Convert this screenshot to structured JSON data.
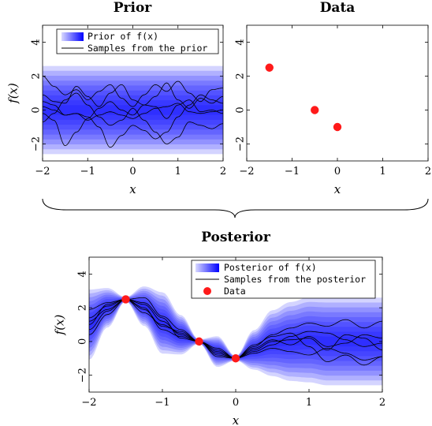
{
  "prior_title": "Prior",
  "data_title": "Data",
  "posterior_title": "Posterior",
  "prior_legend": {
    "band": "Prior of f(x)",
    "samples": "Samples from the prior"
  },
  "posterior_legend": {
    "band": "Posterior of f(x)",
    "samples": "Samples from the posterior",
    "data": "Data"
  },
  "colors": {
    "band": "#0000ff",
    "data_point": "#ff1a1a",
    "sample_line": "#000000"
  },
  "chart_data": [
    {
      "id": "prior",
      "type": "line",
      "title": "Prior",
      "xlabel": "x",
      "ylabel": "f(x)",
      "xlim": [
        -2,
        2
      ],
      "ylim": [
        -3,
        5
      ],
      "xticks": [
        -2,
        -1,
        0,
        1,
        2
      ],
      "yticks": [
        -2,
        0,
        2,
        4
      ],
      "band": {
        "mean": 0,
        "std": 1
      },
      "series": [
        {
          "x": [
            -2,
            -1.75,
            -1.5,
            -1.25,
            -1,
            -0.75,
            -0.5,
            -0.25,
            0,
            0.25,
            0.5,
            0.75,
            1,
            1.25,
            1.5,
            1.75,
            2
          ],
          "values": [
            2.0,
            1.4,
            0.9,
            1.2,
            0.6,
            1.1,
            1.5,
            0.7,
            0.2,
            0.9,
            1.5,
            1.1,
            1.7,
            1.0,
            0.5,
            1.2,
            1.3
          ]
        },
        {
          "x": [
            -2,
            -1.75,
            -1.5,
            -1.25,
            -1,
            -0.75,
            -0.5,
            -0.25,
            0,
            0.25,
            0.5,
            0.75,
            1,
            1.25,
            1.5,
            1.75,
            2
          ],
          "values": [
            0.9,
            0.5,
            0.4,
            1.4,
            0.8,
            0.2,
            1.0,
            1.5,
            0.6,
            0.3,
            0.8,
            1.6,
            0.6,
            0.1,
            0.7,
            0.4,
            0.8
          ]
        },
        {
          "x": [
            -2,
            -1.75,
            -1.5,
            -1.25,
            -1,
            -0.75,
            -0.5,
            -0.25,
            0,
            0.25,
            0.5,
            0.75,
            1,
            1.25,
            1.5,
            1.75,
            2
          ],
          "values": [
            -0.2,
            -0.6,
            -2.1,
            -1.3,
            -0.5,
            0.1,
            0.5,
            0.0,
            -0.3,
            0.3,
            0.2,
            -0.5,
            0.3,
            0.6,
            -0.1,
            0.0,
            -0.2
          ]
        },
        {
          "x": [
            -2,
            -1.75,
            -1.5,
            -1.25,
            -1,
            -0.75,
            -0.5,
            -0.25,
            0,
            0.25,
            0.5,
            0.75,
            1,
            1.25,
            1.5,
            1.75,
            2
          ],
          "values": [
            0.5,
            0.3,
            -0.3,
            -0.2,
            -0.4,
            -1.0,
            -2.2,
            -1.5,
            -0.9,
            -1.2,
            -1.7,
            -1.3,
            -0.4,
            0.3,
            0.9,
            0.6,
            0.4
          ]
        },
        {
          "x": [
            -2,
            -1.75,
            -1.5,
            -1.25,
            -1,
            -0.75,
            -0.5,
            -0.25,
            0,
            0.25,
            0.5,
            0.75,
            1,
            1.25,
            1.5,
            1.75,
            2
          ],
          "values": [
            -0.7,
            -0.2,
            0.6,
            1.0,
            0.3,
            -0.4,
            -0.9,
            -0.6,
            0.1,
            -0.6,
            -1.3,
            -2.0,
            -1.6,
            -0.7,
            -0.9,
            -1.1,
            -0.8
          ]
        },
        {
          "x": [
            -2,
            -1.75,
            -1.5,
            -1.25,
            -1,
            -0.75,
            -0.5,
            -0.25,
            0,
            0.25,
            0.5,
            0.75,
            1,
            1.25,
            1.5,
            1.75,
            2
          ],
          "values": [
            0.2,
            0.0,
            -0.3,
            -0.2,
            -0.6,
            -0.3,
            -0.1,
            -0.3,
            -0.5,
            -0.2,
            0.1,
            0.2,
            0.4,
            -0.1,
            -0.2,
            -0.1,
            0.0
          ]
        }
      ]
    },
    {
      "id": "data",
      "type": "scatter",
      "title": "Data",
      "xlabel": "x",
      "xlim": [
        -2,
        2
      ],
      "ylim": [
        -3,
        5
      ],
      "xticks": [
        -2,
        -1,
        0,
        1,
        2
      ],
      "yticks": [
        -2,
        0,
        2,
        4
      ],
      "points": [
        {
          "x": -1.5,
          "y": 2.5
        },
        {
          "x": -0.5,
          "y": 0
        },
        {
          "x": 0,
          "y": -1
        }
      ]
    },
    {
      "id": "posterior",
      "type": "line",
      "title": "Posterior",
      "xlabel": "x",
      "ylabel": "f(x)",
      "xlim": [
        -2,
        2
      ],
      "ylim": [
        -3,
        5
      ],
      "xticks": [
        -2,
        -1,
        0,
        1,
        2
      ],
      "yticks": [
        -2,
        0,
        2,
        4
      ],
      "band": {
        "x": [
          -2,
          -1.75,
          -1.5,
          -1.25,
          -1,
          -0.75,
          -0.5,
          -0.25,
          0,
          0.25,
          0.5,
          0.75,
          1,
          1.25,
          1.5,
          1.75,
          2
        ],
        "mean": [
          1.0,
          2.0,
          2.5,
          2.1,
          1.1,
          0.4,
          0.0,
          -0.6,
          -1.0,
          -0.5,
          -0.1,
          0.0,
          0.1,
          0.0,
          0.0,
          0.0,
          0.0
        ],
        "std": [
          0.8,
          0.45,
          0.05,
          0.45,
          0.7,
          0.45,
          0.05,
          0.35,
          0.05,
          0.45,
          0.75,
          0.9,
          0.97,
          1.0,
          1.0,
          1.0,
          1.0
        ]
      },
      "points": [
        {
          "x": -1.5,
          "y": 2.5
        },
        {
          "x": -0.5,
          "y": 0
        },
        {
          "x": 0,
          "y": -1
        }
      ],
      "series": [
        {
          "x": [
            -2,
            -1.75,
            -1.5,
            -1.25,
            -1,
            -0.75,
            -0.5,
            -0.25,
            0,
            0.25,
            0.5,
            0.75,
            1,
            1.25,
            1.5,
            1.75,
            2
          ],
          "values": [
            1.9,
            2.3,
            2.5,
            2.6,
            1.5,
            0.7,
            0.0,
            -0.4,
            -1.0,
            -0.3,
            0.4,
            0.8,
            1.1,
            0.9,
            1.3,
            0.8,
            1.2
          ]
        },
        {
          "x": [
            -2,
            -1.75,
            -1.5,
            -1.25,
            -1,
            -0.75,
            -0.5,
            -0.25,
            0,
            0.25,
            0.5,
            0.75,
            1,
            1.25,
            1.5,
            1.75,
            2
          ],
          "values": [
            1.2,
            1.9,
            2.5,
            2.0,
            0.7,
            0.3,
            0.0,
            -0.9,
            -1.0,
            -0.7,
            -0.4,
            -0.6,
            -0.8,
            -0.4,
            -0.7,
            -1.1,
            -0.9
          ]
        },
        {
          "x": [
            -2,
            -1.75,
            -1.5,
            -1.25,
            -1,
            -0.75,
            -0.5,
            -0.25,
            0,
            0.25,
            0.5,
            0.75,
            1,
            1.25,
            1.5,
            1.75,
            2
          ],
          "values": [
            0.4,
            1.6,
            2.5,
            1.7,
            1.0,
            0.5,
            0.0,
            -0.7,
            -1.0,
            -0.4,
            0.1,
            -0.2,
            0.3,
            -0.3,
            -0.1,
            0.4,
            0.2
          ]
        },
        {
          "x": [
            -2,
            -1.75,
            -1.5,
            -1.25,
            -1,
            -0.75,
            -0.5,
            -0.25,
            0,
            0.25,
            0.5,
            0.75,
            1,
            1.25,
            1.5,
            1.75,
            2
          ],
          "values": [
            1.0,
            2.2,
            2.5,
            2.3,
            1.4,
            0.2,
            0.0,
            -0.5,
            -1.0,
            -0.2,
            0.3,
            0.5,
            -0.3,
            -1.2,
            -0.8,
            -1.4,
            -0.9
          ]
        },
        {
          "x": [
            -2,
            -1.75,
            -1.5,
            -1.25,
            -1,
            -0.75,
            -0.5,
            -0.25,
            0,
            0.25,
            0.5,
            0.75,
            1,
            1.25,
            1.5,
            1.75,
            2
          ],
          "values": [
            0.7,
            1.8,
            2.5,
            1.9,
            0.9,
            0.6,
            0.0,
            -0.6,
            -1.0,
            -0.6,
            -0.2,
            0.3,
            0.6,
            0.5,
            0.1,
            -0.3,
            -0.1
          ]
        },
        {
          "x": [
            -2,
            -1.75,
            -1.5,
            -1.25,
            -1,
            -0.75,
            -0.5,
            -0.25,
            0,
            0.25,
            0.5,
            0.75,
            1,
            1.25,
            1.5,
            1.75,
            2
          ],
          "values": [
            1.4,
            2.1,
            2.5,
            2.2,
            1.2,
            0.4,
            0.0,
            -0.8,
            -1.0,
            -0.5,
            0.0,
            0.1,
            0.2,
            -0.5,
            0.4,
            0.2,
            -0.5
          ]
        }
      ]
    }
  ]
}
